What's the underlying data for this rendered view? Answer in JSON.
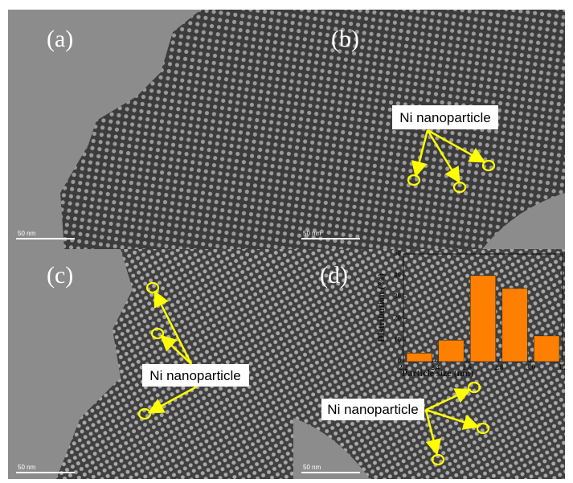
{
  "panels": [
    {
      "label": "(a)",
      "scale_bar": "50 nm"
    },
    {
      "label": "(b)",
      "scale_bar": "50 nm",
      "annotation": "Ni nanoparticle"
    },
    {
      "label": "(c)",
      "scale_bar": "50 nm",
      "annotation": "Ni nanoparticle"
    },
    {
      "label": "(d)",
      "scale_bar": "50 nm",
      "annotation": "Ni nanoparticle"
    }
  ],
  "chart_data": {
    "type": "histogram",
    "xlabel": "Particle size (nm)",
    "ylabel": "Distribution (%)",
    "bins": [
      2.2,
      2.4,
      2.6,
      2.8,
      3.0,
      3.2
    ],
    "values": [
      4,
      10,
      40,
      34,
      12
    ],
    "color": "#ff7f00",
    "xlim": [
      2.2,
      3.2
    ],
    "ylim": [
      0,
      50
    ],
    "xticks": [
      2.2,
      2.4,
      2.6,
      2.8,
      {
        "value": 3,
        "label": "3.0"
      },
      3.2
    ],
    "yticks": [
      0,
      10,
      20,
      30,
      40,
      50
    ]
  }
}
